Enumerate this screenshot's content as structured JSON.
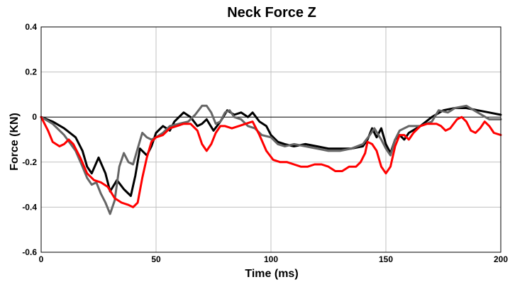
{
  "chart_data": {
    "type": "line",
    "title": "Neck Force Z",
    "xlabel": "Time (ms)",
    "ylabel": "Force (KN)",
    "xlim": [
      0,
      200
    ],
    "ylim": [
      -0.6,
      0.4
    ],
    "x_ticks": [
      0,
      50,
      100,
      150,
      200
    ],
    "y_ticks": [
      0.4,
      0.2,
      0,
      -0.2,
      -0.4,
      -0.6
    ],
    "x_tick_labels": [
      "0",
      "50",
      "100",
      "150",
      "200"
    ],
    "y_tick_labels": [
      "0.4",
      "0.2",
      "0",
      "-0.2",
      "-0.4",
      "-0.6"
    ],
    "grid": true,
    "zero_line": true,
    "legend": "none",
    "series": [
      {
        "color": "#000000",
        "points": [
          [
            0,
            0
          ],
          [
            5,
            -0.02
          ],
          [
            10,
            -0.05
          ],
          [
            15,
            -0.09
          ],
          [
            18,
            -0.15
          ],
          [
            20,
            -0.22
          ],
          [
            22,
            -0.25
          ],
          [
            25,
            -0.18
          ],
          [
            28,
            -0.25
          ],
          [
            30,
            -0.33
          ],
          [
            33,
            -0.28
          ],
          [
            36,
            -0.32
          ],
          [
            39,
            -0.35
          ],
          [
            41,
            -0.26
          ],
          [
            43,
            -0.14
          ],
          [
            46,
            -0.17
          ],
          [
            48,
            -0.13
          ],
          [
            50,
            -0.07
          ],
          [
            53,
            -0.04
          ],
          [
            56,
            -0.06
          ],
          [
            58,
            -0.02
          ],
          [
            62,
            0.02
          ],
          [
            65,
            0.0
          ],
          [
            68,
            -0.04
          ],
          [
            70,
            -0.03
          ],
          [
            72,
            -0.01
          ],
          [
            75,
            -0.06
          ],
          [
            78,
            -0.02
          ],
          [
            81,
            0.03
          ],
          [
            84,
            0.01
          ],
          [
            87,
            0.02
          ],
          [
            90,
            0.0
          ],
          [
            92,
            0.02
          ],
          [
            95,
            -0.02
          ],
          [
            98,
            -0.04
          ],
          [
            100,
            -0.08
          ],
          [
            103,
            -0.11
          ],
          [
            106,
            -0.12
          ],
          [
            110,
            -0.13
          ],
          [
            115,
            -0.12
          ],
          [
            120,
            -0.13
          ],
          [
            125,
            -0.14
          ],
          [
            130,
            -0.14
          ],
          [
            135,
            -0.14
          ],
          [
            140,
            -0.13
          ],
          [
            142,
            -0.1
          ],
          [
            144,
            -0.05
          ],
          [
            146,
            -0.09
          ],
          [
            148,
            -0.05
          ],
          [
            150,
            -0.12
          ],
          [
            152,
            -0.16
          ],
          [
            154,
            -0.1
          ],
          [
            156,
            -0.08
          ],
          [
            158,
            -0.1
          ],
          [
            160,
            -0.07
          ],
          [
            165,
            -0.04
          ],
          [
            170,
            0.0
          ],
          [
            175,
            0.03
          ],
          [
            180,
            0.04
          ],
          [
            185,
            0.04
          ],
          [
            190,
            0.03
          ],
          [
            195,
            0.02
          ],
          [
            200,
            0.01
          ]
        ]
      },
      {
        "color": "#666666",
        "points": [
          [
            0,
            0
          ],
          [
            5,
            -0.03
          ],
          [
            10,
            -0.08
          ],
          [
            15,
            -0.15
          ],
          [
            18,
            -0.22
          ],
          [
            20,
            -0.27
          ],
          [
            22,
            -0.3
          ],
          [
            24,
            -0.29
          ],
          [
            26,
            -0.34
          ],
          [
            28,
            -0.38
          ],
          [
            30,
            -0.43
          ],
          [
            32,
            -0.37
          ],
          [
            34,
            -0.22
          ],
          [
            36,
            -0.16
          ],
          [
            38,
            -0.2
          ],
          [
            40,
            -0.21
          ],
          [
            42,
            -0.14
          ],
          [
            44,
            -0.07
          ],
          [
            46,
            -0.09
          ],
          [
            48,
            -0.1
          ],
          [
            50,
            -0.09
          ],
          [
            53,
            -0.07
          ],
          [
            56,
            -0.04
          ],
          [
            60,
            -0.03
          ],
          [
            64,
            -0.02
          ],
          [
            67,
            0.01
          ],
          [
            70,
            0.05
          ],
          [
            72,
            0.05
          ],
          [
            74,
            0.02
          ],
          [
            76,
            -0.03
          ],
          [
            78,
            -0.02
          ],
          [
            80,
            0.02
          ],
          [
            82,
            0.03
          ],
          [
            84,
            0.0
          ],
          [
            87,
            -0.01
          ],
          [
            90,
            -0.04
          ],
          [
            93,
            -0.05
          ],
          [
            96,
            -0.08
          ],
          [
            100,
            -0.09
          ],
          [
            103,
            -0.12
          ],
          [
            106,
            -0.13
          ],
          [
            110,
            -0.12
          ],
          [
            115,
            -0.13
          ],
          [
            120,
            -0.14
          ],
          [
            125,
            -0.15
          ],
          [
            130,
            -0.15
          ],
          [
            135,
            -0.14
          ],
          [
            140,
            -0.12
          ],
          [
            143,
            -0.08
          ],
          [
            145,
            -0.05
          ],
          [
            148,
            -0.1
          ],
          [
            150,
            -0.14
          ],
          [
            152,
            -0.17
          ],
          [
            154,
            -0.1
          ],
          [
            156,
            -0.06
          ],
          [
            160,
            -0.04
          ],
          [
            165,
            -0.04
          ],
          [
            170,
            -0.02
          ],
          [
            173,
            0.03
          ],
          [
            177,
            0.02
          ],
          [
            180,
            0.04
          ],
          [
            185,
            0.05
          ],
          [
            190,
            0.02
          ],
          [
            195,
            -0.01
          ],
          [
            200,
            -0.01
          ]
        ]
      },
      {
        "color": "#ff0000",
        "points": [
          [
            0,
            0
          ],
          [
            3,
            -0.06
          ],
          [
            5,
            -0.11
          ],
          [
            8,
            -0.13
          ],
          [
            10,
            -0.12
          ],
          [
            12,
            -0.1
          ],
          [
            14,
            -0.12
          ],
          [
            17,
            -0.18
          ],
          [
            20,
            -0.25
          ],
          [
            23,
            -0.28
          ],
          [
            26,
            -0.29
          ],
          [
            29,
            -0.31
          ],
          [
            32,
            -0.36
          ],
          [
            35,
            -0.38
          ],
          [
            38,
            -0.39
          ],
          [
            40,
            -0.4
          ],
          [
            42,
            -0.38
          ],
          [
            44,
            -0.27
          ],
          [
            46,
            -0.18
          ],
          [
            48,
            -0.11
          ],
          [
            50,
            -0.09
          ],
          [
            53,
            -0.08
          ],
          [
            56,
            -0.05
          ],
          [
            59,
            -0.04
          ],
          [
            62,
            -0.03
          ],
          [
            65,
            -0.03
          ],
          [
            68,
            -0.06
          ],
          [
            70,
            -0.12
          ],
          [
            72,
            -0.15
          ],
          [
            74,
            -0.12
          ],
          [
            76,
            -0.07
          ],
          [
            78,
            -0.04
          ],
          [
            80,
            -0.04
          ],
          [
            83,
            -0.05
          ],
          [
            86,
            -0.04
          ],
          [
            89,
            -0.03
          ],
          [
            92,
            -0.02
          ],
          [
            95,
            -0.08
          ],
          [
            98,
            -0.15
          ],
          [
            101,
            -0.19
          ],
          [
            104,
            -0.2
          ],
          [
            107,
            -0.2
          ],
          [
            110,
            -0.21
          ],
          [
            113,
            -0.22
          ],
          [
            116,
            -0.22
          ],
          [
            119,
            -0.21
          ],
          [
            122,
            -0.21
          ],
          [
            125,
            -0.22
          ],
          [
            128,
            -0.24
          ],
          [
            131,
            -0.24
          ],
          [
            134,
            -0.22
          ],
          [
            137,
            -0.22
          ],
          [
            139,
            -0.2
          ],
          [
            141,
            -0.16
          ],
          [
            142,
            -0.11
          ],
          [
            144,
            -0.12
          ],
          [
            146,
            -0.15
          ],
          [
            148,
            -0.22
          ],
          [
            150,
            -0.25
          ],
          [
            152,
            -0.22
          ],
          [
            154,
            -0.13
          ],
          [
            156,
            -0.08
          ],
          [
            158,
            -0.08
          ],
          [
            160,
            -0.1
          ],
          [
            162,
            -0.07
          ],
          [
            165,
            -0.04
          ],
          [
            168,
            -0.03
          ],
          [
            170,
            -0.03
          ],
          [
            172,
            -0.03
          ],
          [
            174,
            -0.04
          ],
          [
            176,
            -0.06
          ],
          [
            178,
            -0.05
          ],
          [
            181,
            -0.01
          ],
          [
            183,
            0.0
          ],
          [
            185,
            -0.02
          ],
          [
            187,
            -0.06
          ],
          [
            189,
            -0.07
          ],
          [
            191,
            -0.05
          ],
          [
            193,
            -0.02
          ],
          [
            195,
            -0.04
          ],
          [
            197,
            -0.07
          ],
          [
            200,
            -0.08
          ]
        ]
      }
    ]
  }
}
